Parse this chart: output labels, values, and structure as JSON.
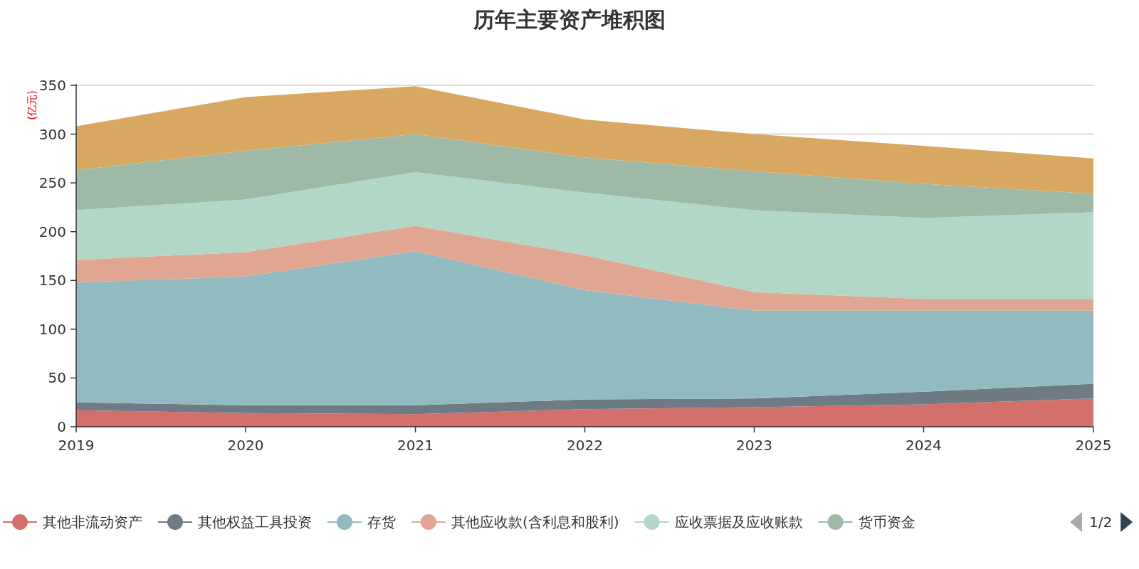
{
  "chart_data": {
    "type": "area",
    "stacked": true,
    "title": "历年主要资产堆积图",
    "ylabel": "(亿元)",
    "x": [
      "2019",
      "2020",
      "2021",
      "2022",
      "2023",
      "2024",
      "2025"
    ],
    "xlim": [
      "2019",
      "2025"
    ],
    "xticks": [
      "2019",
      "2020",
      "2021",
      "2022",
      "2023",
      "2024",
      "2025"
    ],
    "ylim": [
      0,
      350
    ],
    "yticks": [
      0,
      50,
      100,
      150,
      200,
      250,
      300,
      350
    ],
    "grid": "y",
    "legend": "bottom",
    "series": [
      {
        "name": "其他非流动资产",
        "color": "#d4706b",
        "values": [
          17,
          14,
          13,
          18,
          20,
          23,
          29
        ]
      },
      {
        "name": "其他权益工具投资",
        "color": "#6e7b85",
        "values": [
          8,
          8,
          9,
          10,
          9,
          13,
          15
        ]
      },
      {
        "name": "存货",
        "color": "#91bac1",
        "values": [
          123,
          132,
          158,
          112,
          90,
          83,
          75
        ]
      },
      {
        "name": "其他应收款(含利息和股利)",
        "color": "#e0a692",
        "values": [
          23,
          25,
          26,
          36,
          19,
          12,
          12
        ]
      },
      {
        "name": "应收票据及应收账款",
        "color": "#b2d7c6",
        "values": [
          51,
          54,
          55,
          64,
          84,
          83,
          89
        ]
      },
      {
        "name": "货币资金",
        "color": "#9eb9a6",
        "values": [
          41,
          50,
          39,
          36,
          40,
          35,
          19
        ]
      },
      {
        "color": "#d8a863",
        "values": [
          45,
          55,
          49,
          39,
          38,
          39,
          36
        ]
      }
    ],
    "annotations": [
      "1/2"
    ]
  }
}
